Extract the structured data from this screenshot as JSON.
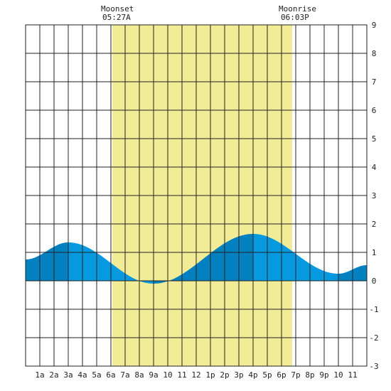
{
  "header": {
    "moonset_label": "Moonset",
    "moonset_time": "05:27A",
    "moonrise_label": "Moonrise",
    "moonrise_time": "06:03P"
  },
  "chart_data": {
    "type": "area",
    "title": "",
    "xlabel": "",
    "ylabel": "",
    "x_ticks": [
      "1a",
      "2a",
      "3a",
      "4a",
      "5a",
      "6a",
      "7a",
      "8a",
      "9a",
      "10",
      "11",
      "12",
      "1p",
      "2p",
      "3p",
      "4p",
      "5p",
      "6p",
      "7p",
      "8p",
      "9p",
      "10",
      "11"
    ],
    "y_ticks": [
      "9",
      "8",
      "7",
      "6",
      "5",
      "4",
      "3",
      "2",
      "1",
      "0",
      "-1",
      "-2",
      "-3"
    ],
    "ylim": [
      -3,
      9
    ],
    "xlim_hours": [
      0,
      24
    ],
    "daylight_hours": [
      6.1,
      18.75
    ],
    "grid": true,
    "series": [
      {
        "x_hours": [
          0,
          3,
          9,
          16,
          22,
          24
        ],
        "values": [
          0.75,
          1.35,
          -0.1,
          1.65,
          0.25,
          0.55
        ]
      }
    ],
    "tide_events": [
      {
        "hour": 3,
        "height": 1.35,
        "type": "high"
      },
      {
        "hour": 9,
        "height": -0.1,
        "type": "low"
      },
      {
        "hour": 16,
        "height": 1.65,
        "type": "high"
      },
      {
        "hour": 22,
        "height": 0.25,
        "type": "low"
      }
    ],
    "colors": {
      "daylight": "#f2ec96",
      "tide_rising": "#0380c0",
      "tide_falling": "#0799e0",
      "grid": "#222222",
      "background": "#ffffff"
    }
  }
}
